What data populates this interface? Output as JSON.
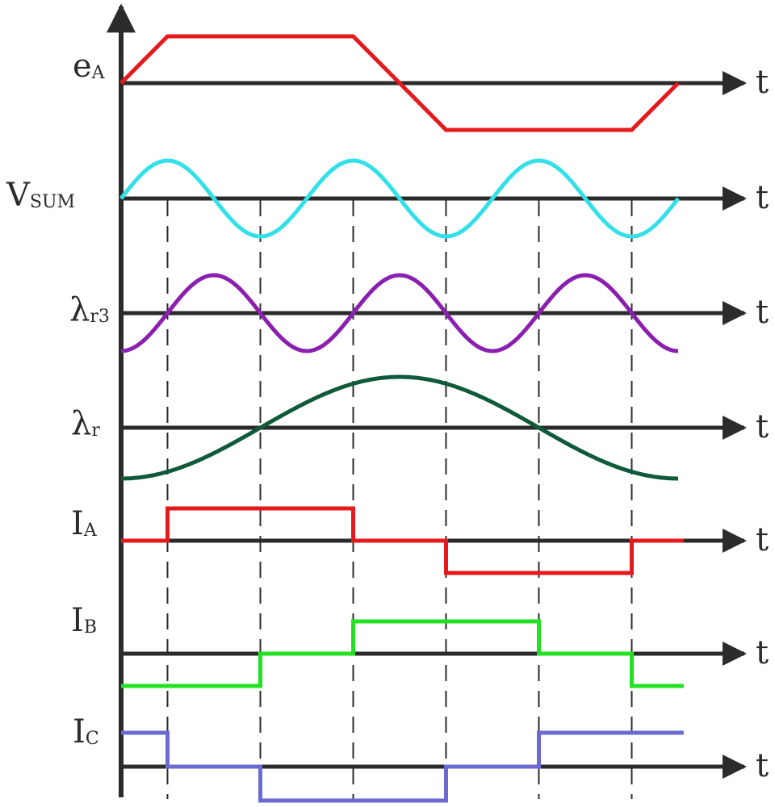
{
  "chart_data": {
    "type": "line",
    "x_unit_label": "t",
    "period_fraction_marks": [
      0.0833,
      0.25,
      0.4167,
      0.5833,
      0.75,
      0.9167
    ],
    "grid": "dashed vertical lines at the marks",
    "traces": [
      {
        "label_main": "e",
        "label_sub": "A",
        "color": "#e41a1c",
        "shape": "trapezoid",
        "points": [
          [
            0,
            0
          ],
          [
            0.0833,
            1
          ],
          [
            0.4167,
            1
          ],
          [
            0.5,
            0
          ],
          [
            0.5833,
            -1
          ],
          [
            0.9167,
            -1
          ],
          [
            1,
            0
          ]
        ]
      },
      {
        "label_main": "V",
        "label_sub": "SUM",
        "color": "#33e0e8",
        "shape": "sine",
        "cycles": 3,
        "phase": 0,
        "offset": 0,
        "amplitude": 1
      },
      {
        "label_main": "λ",
        "label_sub": "r3",
        "color": "#8a1fb0",
        "shape": "sine",
        "cycles": 3,
        "phase": -0.25,
        "offset": 0,
        "amplitude": 1
      },
      {
        "label_main": "λ",
        "label_sub": "r",
        "color": "#0e5a3a",
        "shape": "sine",
        "cycles": 1,
        "phase": -0.25,
        "offset": 0,
        "amplitude": 1
      },
      {
        "label_main": "I",
        "label_sub": "A",
        "color": "#e41a1c",
        "shape": "step",
        "x": [
          0,
          0.0833,
          0.4167,
          0.5833,
          0.9167,
          1.01
        ],
        "levels": [
          0,
          1,
          0,
          -1,
          0
        ]
      },
      {
        "label_main": "I",
        "label_sub": "B",
        "color": "#22e022",
        "shape": "step",
        "x": [
          0,
          0.25,
          0.4167,
          0.75,
          0.9167,
          1.01
        ],
        "levels": [
          -1,
          0,
          1,
          0,
          -1
        ]
      },
      {
        "label_main": "I",
        "label_sub": "C",
        "color": "#6a6ad0",
        "shape": "step",
        "x": [
          0,
          0.0833,
          0.25,
          0.5833,
          0.75,
          1.01
        ],
        "levels": [
          1,
          0,
          -1,
          0,
          1
        ]
      }
    ]
  }
}
